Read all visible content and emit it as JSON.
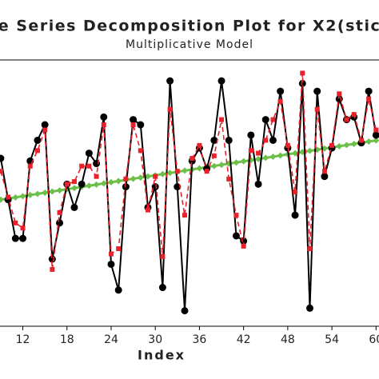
{
  "chart_data": {
    "type": "line",
    "title": "e Series Decomposition Plot for X2(stic",
    "subtitle": "Multiplicative Model",
    "x_label": "Index",
    "x": [
      9,
      10,
      11,
      12,
      13,
      14,
      15,
      16,
      17,
      18,
      19,
      20,
      21,
      22,
      23,
      24,
      25,
      26,
      27,
      28,
      29,
      30,
      31,
      32,
      33,
      34,
      35,
      36,
      37,
      38,
      39,
      40,
      41,
      42,
      43,
      44,
      45,
      46,
      47,
      48,
      49,
      50,
      51,
      52,
      53,
      54,
      55,
      56,
      57,
      58,
      59,
      60
    ],
    "series": [
      {
        "color": "#000000",
        "values": [
          65,
          49,
          34,
          34,
          64,
          72,
          78,
          26,
          40,
          55,
          46,
          55,
          67,
          63,
          81,
          24,
          14,
          54,
          80,
          78,
          46,
          54,
          15,
          95,
          54,
          6,
          64,
          69,
          61,
          72,
          95,
          72,
          35,
          33,
          74,
          55,
          80,
          72,
          91,
          69,
          43,
          94,
          7,
          91,
          58,
          69,
          88,
          80,
          81,
          71,
          91,
          74
        ]
      },
      {
        "color": "#e8212b",
        "values": [
          60,
          50,
          40,
          38,
          62,
          68,
          76,
          22,
          44,
          55,
          56,
          62,
          62,
          58,
          78,
          28,
          30,
          57,
          78,
          68,
          45,
          58,
          27,
          84,
          60,
          43,
          65,
          70,
          60,
          66,
          80,
          57,
          43,
          31,
          68,
          67,
          72,
          80,
          87,
          70,
          52,
          98,
          30,
          84,
          60,
          70,
          90,
          80,
          82,
          72,
          88,
          76
        ]
      },
      {
        "color": "#6cc04a",
        "values": [
          49,
          49.45,
          49.9,
          50.35,
          50.8,
          51.25,
          51.7,
          52.15,
          52.6,
          53.05,
          53.5,
          53.95,
          54.4,
          54.85,
          55.3,
          55.75,
          56.2,
          56.65,
          57.1,
          57.55,
          58,
          58.45,
          58.9,
          59.35,
          59.8,
          60.25,
          60.7,
          61.15,
          61.6,
          62.05,
          62.5,
          62.95,
          63.4,
          63.85,
          64.3,
          64.75,
          65.2,
          65.65,
          66.1,
          66.55,
          67,
          67.45,
          67.9,
          68.35,
          68.8,
          69.25,
          69.7,
          70.15,
          70.6,
          71.05,
          71.5,
          71.95
        ]
      }
    ],
    "xlim": [
      8.9,
      60.4
    ],
    "xticks": [
      12,
      18,
      24,
      30,
      36,
      42,
      48,
      54,
      60
    ],
    "ylim": [
      0,
      100
    ]
  }
}
